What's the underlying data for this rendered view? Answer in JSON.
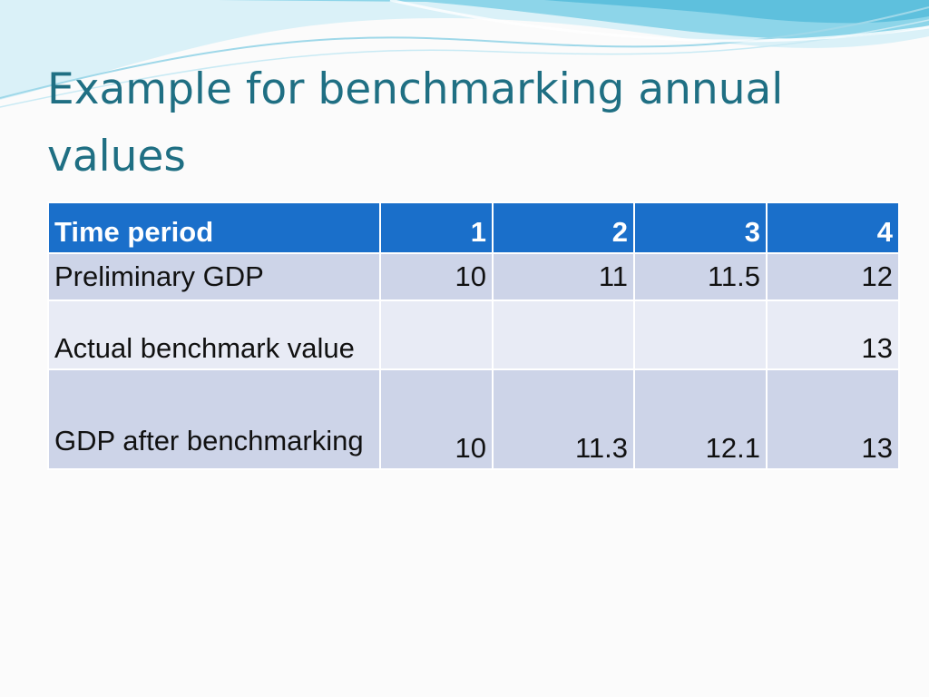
{
  "slide": {
    "title": "Example for benchmarking annual values",
    "colors": {
      "title": "#1f6f83",
      "header_bg": "#1a6fca",
      "row_dark": "#cdd4e8",
      "row_light": "#e8ebf5",
      "wave_light": "#bfe6f2",
      "wave_dark": "#5fc3df"
    }
  },
  "table": {
    "header": [
      "Time period",
      "1",
      "2",
      "3",
      "4"
    ],
    "rows": [
      {
        "label": "Preliminary GDP",
        "values": [
          "10",
          "11",
          "11.5",
          "12"
        ]
      },
      {
        "label": "Actual benchmark value",
        "values": [
          "",
          "",
          "",
          "13"
        ]
      },
      {
        "label": "GDP after benchmarking",
        "values": [
          "10",
          "11.3",
          "12.1",
          "13"
        ]
      }
    ]
  }
}
